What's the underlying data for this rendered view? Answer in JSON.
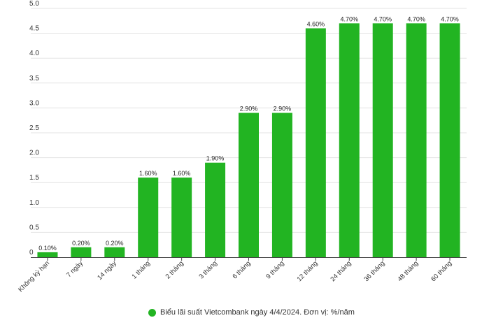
{
  "chart_data": {
    "type": "bar",
    "categories": [
      "Không kỳ hạn",
      "7 ngày",
      "14 ngày",
      "1 tháng",
      "2 tháng",
      "3 tháng",
      "6 tháng",
      "9 tháng",
      "12 tháng",
      "24 tháng",
      "36 tháng",
      "48 tháng",
      "60 tháng"
    ],
    "values": [
      0.1,
      0.2,
      0.2,
      1.6,
      1.6,
      1.9,
      2.9,
      2.9,
      4.6,
      4.7,
      4.7,
      4.7,
      4.7
    ],
    "data_labels": [
      "0.10%",
      "0.20%",
      "0.20%",
      "1.60%",
      "1.60%",
      "1.90%",
      "2.90%",
      "2.90%",
      "4.60%",
      "4.70%",
      "4.70%",
      "4.70%",
      "4.70%"
    ],
    "y_ticks": [
      "0",
      "0.5",
      "1.0",
      "1.5",
      "2.0",
      "2.5",
      "3.0",
      "3.5",
      "4.0",
      "4.5",
      "5.0"
    ],
    "ylim": [
      0,
      5.0
    ],
    "grid": true,
    "legend": {
      "label": "Biểu lãi suất Vietcombank ngày 4/4/2024. Đơn vị: %/năm",
      "position": "bottom-center"
    },
    "colors": {
      "bar": "#22b422",
      "grid": "#e3e3e3",
      "axis": "#444444"
    },
    "title": "",
    "xlabel": "",
    "ylabel": ""
  }
}
